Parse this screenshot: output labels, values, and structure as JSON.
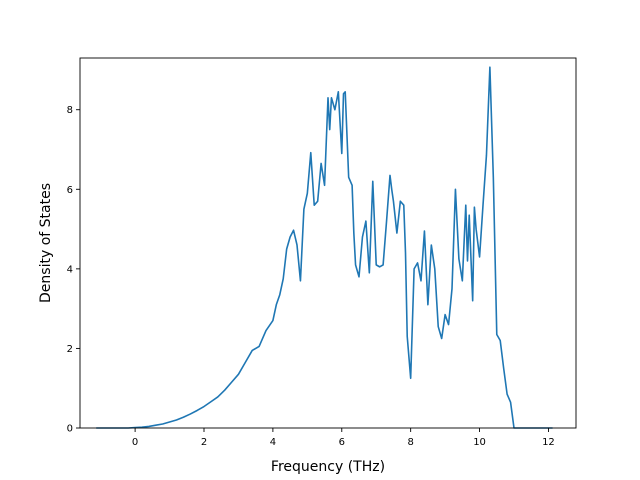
{
  "chart_data": {
    "type": "line",
    "title": "",
    "xlabel": "Frequency (THz)",
    "ylabel": "Density of States",
    "xlim": [
      -1.6,
      12.8
    ],
    "ylim": [
      0,
      9.3
    ],
    "xticks": [
      0,
      2,
      4,
      6,
      8,
      10,
      12
    ],
    "yticks": [
      0,
      2,
      4,
      6,
      8
    ],
    "xtick_labels": [
      "0",
      "2",
      "4",
      "6",
      "8",
      "10",
      "12"
    ],
    "ytick_labels": [
      "0",
      "2",
      "4",
      "6",
      "8"
    ],
    "grid": false,
    "line_color": "#1f77b4",
    "series": [
      {
        "x": [
          -1.13,
          -0.8,
          -0.5,
          -0.2,
          0.0,
          0.2,
          0.4,
          0.6,
          0.8,
          1.0,
          1.2,
          1.4,
          1.6,
          1.8,
          2.0,
          2.2,
          2.4,
          2.6,
          2.8,
          3.0,
          3.2,
          3.4,
          3.6,
          3.8,
          4.0,
          4.1,
          4.2,
          4.3,
          4.4,
          4.5,
          4.6,
          4.7,
          4.8,
          4.9,
          5.0,
          5.1,
          5.2,
          5.3,
          5.4,
          5.5,
          5.6,
          5.65,
          5.7,
          5.8,
          5.9,
          6.0,
          6.05,
          6.1,
          6.2,
          6.3,
          6.35,
          6.4,
          6.5,
          6.6,
          6.7,
          6.8,
          6.9,
          7.0,
          7.1,
          7.2,
          7.3,
          7.4,
          7.45,
          7.5,
          7.6,
          7.7,
          7.8,
          7.85,
          7.9,
          8.0,
          8.1,
          8.2,
          8.3,
          8.4,
          8.5,
          8.6,
          8.7,
          8.8,
          8.9,
          9.0,
          9.1,
          9.2,
          9.3,
          9.4,
          9.5,
          9.6,
          9.65,
          9.7,
          9.8,
          9.85,
          9.9,
          10.0,
          10.1,
          10.2,
          10.3,
          10.4,
          10.5,
          10.6,
          10.7,
          10.8,
          10.9,
          11.0,
          11.05,
          11.1,
          11.3,
          11.6,
          12.0,
          12.12
        ],
        "y": [
          0.0,
          0.0,
          0.0,
          0.0,
          0.01,
          0.02,
          0.04,
          0.07,
          0.1,
          0.15,
          0.2,
          0.27,
          0.35,
          0.44,
          0.54,
          0.66,
          0.78,
          0.95,
          1.15,
          1.35,
          1.65,
          1.95,
          2.05,
          2.45,
          2.7,
          3.1,
          3.35,
          3.75,
          4.5,
          4.8,
          4.97,
          4.6,
          3.7,
          5.5,
          5.9,
          6.92,
          5.6,
          5.7,
          6.65,
          6.1,
          8.3,
          7.5,
          8.3,
          8.0,
          8.45,
          6.9,
          8.4,
          8.45,
          6.3,
          6.1,
          4.9,
          4.1,
          3.8,
          4.8,
          5.2,
          3.9,
          6.2,
          4.1,
          4.05,
          4.1,
          5.2,
          6.35,
          6.0,
          5.7,
          4.9,
          5.7,
          5.6,
          4.4,
          2.3,
          1.25,
          4.0,
          4.15,
          3.7,
          4.95,
          3.1,
          4.6,
          4.0,
          2.55,
          2.25,
          2.85,
          2.6,
          3.5,
          6.0,
          4.25,
          3.7,
          5.6,
          4.2,
          5.35,
          3.2,
          5.55,
          5.0,
          4.3,
          5.6,
          6.85,
          9.07,
          6.3,
          2.35,
          2.2,
          1.5,
          0.85,
          0.65,
          0.0,
          0.0,
          0.0,
          0.0,
          0.0,
          0.0,
          0.0
        ]
      }
    ]
  }
}
